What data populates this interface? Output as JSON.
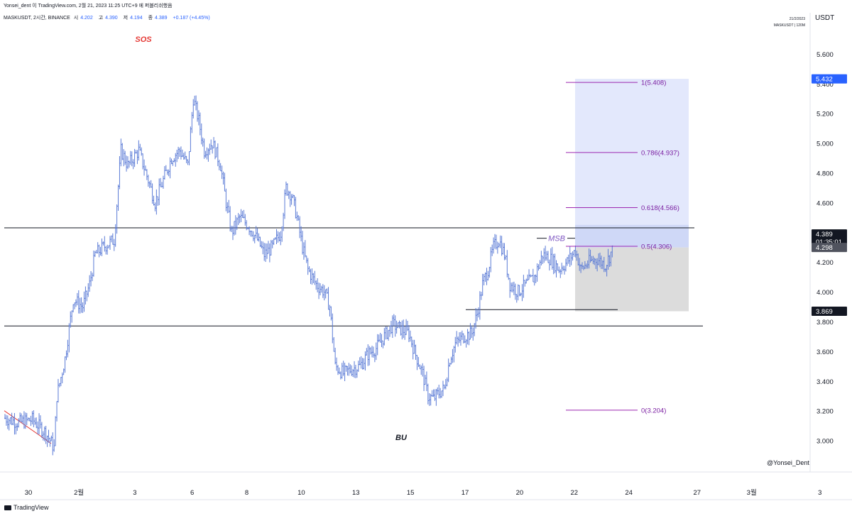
{
  "header": {
    "text": "Yonsei_dent 이 TradingView.com, 2월 21, 2023 11:25 UTC+9 에 퍼블리쉬했음"
  },
  "symbol_bar": {
    "symbol": "MASKUSDT, 2시간, BINANCE",
    "open_label": "시",
    "open": "4.202",
    "high_label": "고",
    "high": "4.390",
    "low_label": "저",
    "low": "4.194",
    "close_label": "종",
    "close": "4.389",
    "change": "+0.187 (+4.45%)"
  },
  "top_right": {
    "date": "21/2/2023",
    "symbol_interval": "MASKUSDT | 120M"
  },
  "currency": "USDT",
  "branding": {
    "logo_text": "TradingView"
  },
  "watermark": "@Yonsei_Dent",
  "colors": {
    "candle": "#5b7bd6",
    "fib_line": "#9c27b0",
    "fib_text": "#7b1fa2",
    "target_zone": "#e3e8fc",
    "entry_zone": "#cfd8f7",
    "stop_zone": "#dcdcdc",
    "sos": "#e53935",
    "trendline": "#e53935",
    "hline": "#131722",
    "price_tag_blue": "#2962ff",
    "price_tag_dark": "#131722",
    "price_tag_gray": "#50535e"
  },
  "chart_data": {
    "type": "candlestick",
    "interval": "2h",
    "ylim": [
      2.85,
      5.75
    ],
    "y_ticks": [
      "5.600",
      "5.400",
      "5.200",
      "5.000",
      "4.800",
      "4.600",
      "4.400",
      "4.200",
      "4.000",
      "3.800",
      "3.600",
      "3.400",
      "3.200",
      "3.000"
    ],
    "x_tick_labels": [
      "30",
      "2월",
      "3",
      "6",
      "8",
      "10",
      "13",
      "15",
      "17",
      "20",
      "22",
      "24",
      "27",
      "3월",
      "3"
    ],
    "x_tick_index": [
      0,
      37,
      78,
      120,
      160,
      200,
      240,
      280,
      320,
      360,
      400,
      440,
      490,
      530,
      580
    ],
    "bars_total": 590,
    "path_anchors": [
      [
        0,
        3.15
      ],
      [
        10,
        3.12
      ],
      [
        20,
        3.14
      ],
      [
        30,
        3.05
      ],
      [
        36,
        2.95
      ],
      [
        38,
        3.3
      ],
      [
        44,
        3.55
      ],
      [
        50,
        3.95
      ],
      [
        57,
        3.9
      ],
      [
        62,
        4.05
      ],
      [
        66,
        4.25
      ],
      [
        72,
        4.3
      ],
      [
        80,
        4.35
      ],
      [
        85,
        4.95
      ],
      [
        90,
        4.85
      ],
      [
        98,
        4.95
      ],
      [
        105,
        4.75
      ],
      [
        110,
        4.6
      ],
      [
        116,
        4.75
      ],
      [
        122,
        4.9
      ],
      [
        128,
        4.95
      ],
      [
        134,
        4.85
      ],
      [
        138,
        5.3
      ],
      [
        142,
        5.15
      ],
      [
        146,
        4.95
      ],
      [
        152,
        5.0
      ],
      [
        158,
        4.85
      ],
      [
        162,
        4.6
      ],
      [
        166,
        4.4
      ],
      [
        172,
        4.5
      ],
      [
        178,
        4.45
      ],
      [
        185,
        4.35
      ],
      [
        190,
        4.25
      ],
      [
        196,
        4.3
      ],
      [
        202,
        4.4
      ],
      [
        206,
        4.7
      ],
      [
        210,
        4.65
      ],
      [
        214,
        4.5
      ],
      [
        218,
        4.3
      ],
      [
        222,
        4.15
      ],
      [
        228,
        4.05
      ],
      [
        234,
        4.0
      ],
      [
        238,
        3.9
      ],
      [
        242,
        3.5
      ],
      [
        248,
        3.45
      ],
      [
        254,
        3.48
      ],
      [
        260,
        3.5
      ],
      [
        266,
        3.58
      ],
      [
        272,
        3.62
      ],
      [
        278,
        3.7
      ],
      [
        284,
        3.78
      ],
      [
        290,
        3.75
      ],
      [
        296,
        3.72
      ],
      [
        300,
        3.6
      ],
      [
        306,
        3.45
      ],
      [
        310,
        3.3
      ],
      [
        314,
        3.28
      ],
      [
        318,
        3.32
      ],
      [
        322,
        3.35
      ],
      [
        326,
        3.55
      ],
      [
        330,
        3.65
      ],
      [
        336,
        3.7
      ],
      [
        342,
        3.72
      ],
      [
        346,
        3.85
      ],
      [
        350,
        4.05
      ],
      [
        354,
        4.15
      ],
      [
        358,
        4.3
      ],
      [
        362,
        4.35
      ],
      [
        366,
        4.25
      ],
      [
        370,
        4.05
      ],
      [
        376,
        4.0
      ],
      [
        382,
        4.05
      ],
      [
        388,
        4.1
      ],
      [
        394,
        4.25
      ],
      [
        400,
        4.22
      ],
      [
        406,
        4.15
      ],
      [
        412,
        4.2
      ],
      [
        418,
        4.28
      ],
      [
        422,
        4.15
      ],
      [
        428,
        4.2
      ],
      [
        434,
        4.22
      ],
      [
        440,
        4.18
      ],
      [
        446,
        4.3
      ]
    ],
    "bars_drawn": 446,
    "fib_levels": [
      {
        "label": "1(5.408)",
        "ratio": 1,
        "price": 5.408
      },
      {
        "label": "0.786(4.937)",
        "ratio": 0.786,
        "price": 4.937
      },
      {
        "label": "0.618(4.566)",
        "ratio": 0.618,
        "price": 4.566
      },
      {
        "label": "0.5(4.306)",
        "ratio": 0.5,
        "price": 4.306
      },
      {
        "label": "0(3.204)",
        "ratio": 0,
        "price": 3.204
      }
    ],
    "horizontal_levels": [
      4.43,
      3.77
    ],
    "swing_low_line": 3.88,
    "long_position": {
      "target": 5.432,
      "entry": 4.298,
      "stop": 3.869
    },
    "price_tags": [
      {
        "label": "5.432",
        "price": 5.432,
        "style": "blue"
      },
      {
        "label": "4.389",
        "price": 4.389,
        "style": "dark",
        "sub": "01:35:01"
      },
      {
        "label": "4.298",
        "price": 4.298,
        "style": "gray"
      },
      {
        "label": "3.869",
        "price": 3.869,
        "style": "dark"
      }
    ],
    "annotations": [
      {
        "text": "SOS",
        "x_index": 108,
        "price": 5.6,
        "style": "sos"
      },
      {
        "text": "MSB",
        "x_index": 432,
        "price": 4.36,
        "style": "msb"
      },
      {
        "text": "BU",
        "x_index": 310,
        "price": 3.02,
        "style": "bu"
      }
    ]
  }
}
